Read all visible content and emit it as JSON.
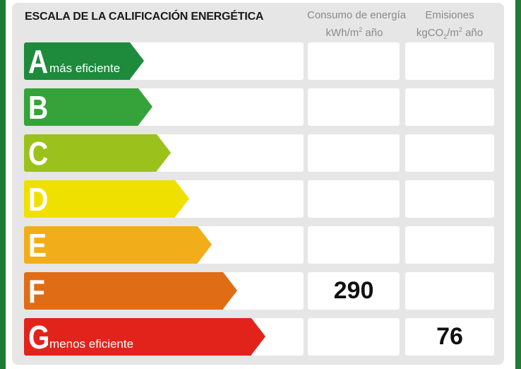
{
  "title": "ESCALA DE LA CALIFICACIÓN ENERGÉTICA",
  "columns": {
    "consumo": {
      "line1": "Consumo de energía",
      "line2_a": "kWh/m",
      "line2_sup": "2",
      "line2_b": " año"
    },
    "emisiones": {
      "line1": "Emisiones",
      "line2_a": "kgCO",
      "line2_sub": "2",
      "line2_b": "/m",
      "line2_sup": "2",
      "line2_c": " año"
    }
  },
  "ratings": [
    {
      "letter": "A",
      "label": "más eficiente",
      "color": "#1e8a3c",
      "consumo": "",
      "emisiones": ""
    },
    {
      "letter": "B",
      "label": "",
      "color": "#35a33a",
      "consumo": "",
      "emisiones": ""
    },
    {
      "letter": "C",
      "label": "",
      "color": "#9bc21c",
      "consumo": "",
      "emisiones": ""
    },
    {
      "letter": "D",
      "label": "",
      "color": "#f0e000",
      "consumo": "",
      "emisiones": ""
    },
    {
      "letter": "E",
      "label": "",
      "color": "#f2ad1a",
      "consumo": "",
      "emisiones": ""
    },
    {
      "letter": "F",
      "label": "",
      "color": "#e06d16",
      "consumo": "290",
      "emisiones": ""
    },
    {
      "letter": "G",
      "label": "menos eficiente",
      "color": "#e2231c",
      "consumo": "",
      "emisiones": "76"
    }
  ]
}
